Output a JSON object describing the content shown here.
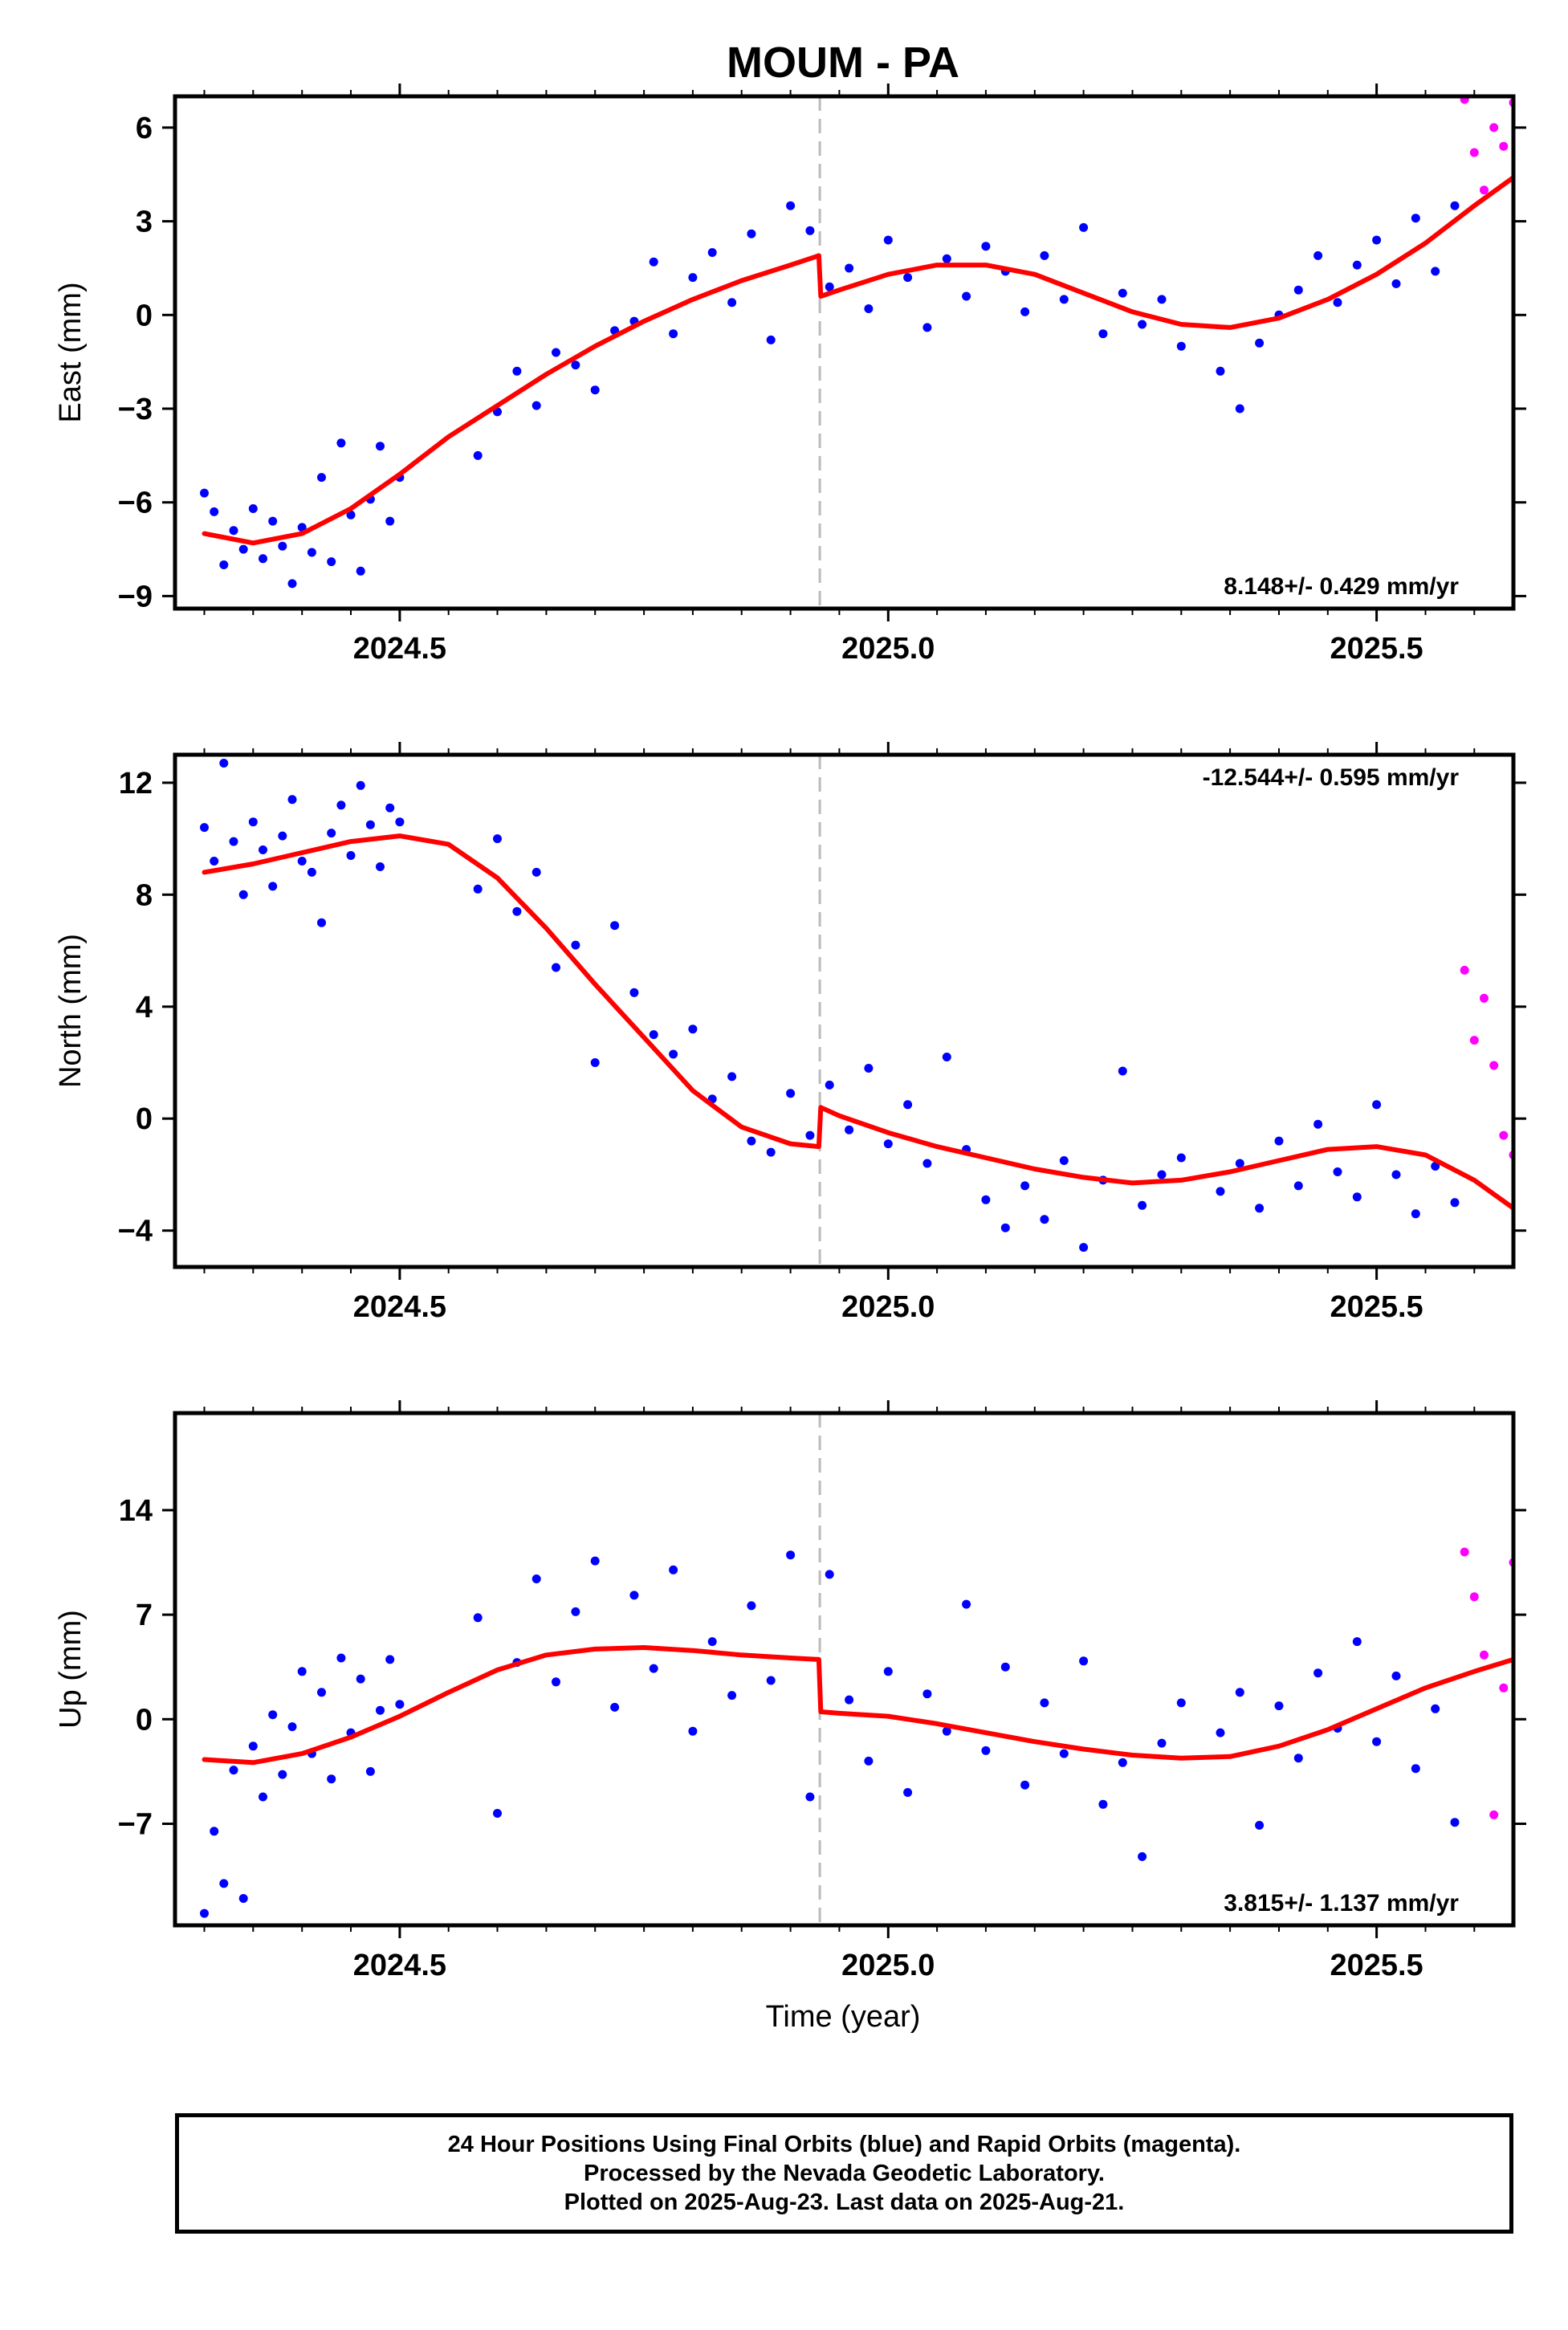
{
  "title": "MOUM - PA",
  "xlabel": "Time (year)",
  "colors": {
    "final": "#0000ff",
    "rapid": "#ff00ff",
    "model": "#ff0000",
    "event_line": "#bbbbbb"
  },
  "caption": {
    "line1": "24 Hour Positions Using Final Orbits (blue) and Rapid Orbits (magenta).",
    "line2": "Processed by the Nevada Geodetic Laboratory.",
    "line3": "Plotted on 2025-Aug-23. Last data on 2025-Aug-21."
  },
  "chart_data": [
    {
      "type": "scatter",
      "ylabel": "East (mm)",
      "xlim": [
        2024.27,
        2025.64
      ],
      "ylim": [
        -9.4,
        7.0
      ],
      "yticks": [
        -9,
        -6,
        -3,
        0,
        3,
        6
      ],
      "xticks": [
        2024.5,
        2025.0,
        2025.5
      ],
      "xticklabels": [
        "2024.5",
        "2025.0",
        "2025.5"
      ],
      "event_x": 2024.93,
      "rate_label": "8.148+/- 0.429 mm/yr",
      "rate_position": "bottom-right",
      "model": {
        "x": [
          2024.3,
          2024.35,
          2024.4,
          2024.45,
          2024.5,
          2024.55,
          2024.6,
          2024.65,
          2024.7,
          2024.75,
          2024.8,
          2024.85,
          2024.9,
          2024.929,
          2024.931,
          2024.95,
          2025.0,
          2025.05,
          2025.1,
          2025.15,
          2025.2,
          2025.25,
          2025.3,
          2025.35,
          2025.4,
          2025.45,
          2025.5,
          2025.55,
          2025.6,
          2025.64
        ],
        "y": [
          -7.0,
          -7.3,
          -7.0,
          -6.2,
          -5.1,
          -3.9,
          -2.9,
          -1.9,
          -1.0,
          -0.2,
          0.5,
          1.1,
          1.6,
          1.9,
          0.6,
          0.8,
          1.3,
          1.6,
          1.6,
          1.3,
          0.7,
          0.1,
          -0.3,
          -0.4,
          -0.1,
          0.5,
          1.3,
          2.3,
          3.5,
          4.4
        ]
      },
      "final": {
        "x": [
          2024.3,
          2024.31,
          2024.32,
          2024.33,
          2024.34,
          2024.35,
          2024.36,
          2024.37,
          2024.38,
          2024.39,
          2024.4,
          2024.41,
          2024.42,
          2024.43,
          2024.44,
          2024.45,
          2024.46,
          2024.47,
          2024.48,
          2024.49,
          2024.5,
          2024.58,
          2024.6,
          2024.62,
          2024.64,
          2024.66,
          2024.68,
          2024.7,
          2024.72,
          2024.74,
          2024.76,
          2024.78,
          2024.8,
          2024.82,
          2024.84,
          2024.86,
          2024.88,
          2024.9,
          2024.92,
          2024.94,
          2024.96,
          2024.98,
          2025.0,
          2025.02,
          2025.04,
          2025.06,
          2025.08,
          2025.1,
          2025.12,
          2025.14,
          2025.16,
          2025.18,
          2025.2,
          2025.22,
          2025.24,
          2025.26,
          2025.28,
          2025.3,
          2025.34,
          2025.36,
          2025.38,
          2025.4,
          2025.42,
          2025.44,
          2025.46,
          2025.48,
          2025.5,
          2025.52,
          2025.54,
          2025.56,
          2025.58
        ],
        "y": [
          -5.7,
          -6.3,
          -8.0,
          -6.9,
          -7.5,
          -6.2,
          -7.8,
          -6.6,
          -7.4,
          -8.6,
          -6.8,
          -7.6,
          -5.2,
          -7.9,
          -4.1,
          -6.4,
          -8.2,
          -5.9,
          -4.2,
          -6.6,
          -5.2,
          -4.5,
          -3.1,
          -1.8,
          -2.9,
          -1.2,
          -1.6,
          -2.4,
          -0.5,
          -0.2,
          1.7,
          -0.6,
          1.2,
          2.0,
          0.4,
          2.6,
          -0.8,
          3.5,
          2.7,
          0.9,
          1.5,
          0.2,
          2.4,
          1.2,
          -0.4,
          1.8,
          0.6,
          2.2,
          1.4,
          0.1,
          1.9,
          0.5,
          2.8,
          -0.6,
          0.7,
          -0.3,
          0.5,
          -1.0,
          -1.8,
          -3.0,
          -0.9,
          0.0,
          0.8,
          1.9,
          0.4,
          1.6,
          2.4,
          1.0,
          3.1,
          1.4,
          3.5
        ]
      },
      "rapid": {
        "x": [
          2025.59,
          2025.6,
          2025.61,
          2025.62,
          2025.63,
          2025.64
        ],
        "y": [
          6.9,
          5.2,
          4.0,
          6.0,
          5.4,
          6.8
        ]
      }
    },
    {
      "type": "scatter",
      "ylabel": "North (mm)",
      "xlim": [
        2024.27,
        2025.64
      ],
      "ylim": [
        -5.3,
        13.0
      ],
      "yticks": [
        -4,
        0,
        4,
        8,
        12
      ],
      "xticks": [
        2024.5,
        2025.0,
        2025.5
      ],
      "xticklabels": [
        "2024.5",
        "2025.0",
        "2025.5"
      ],
      "event_x": 2024.93,
      "rate_label": "-12.544+/- 0.595 mm/yr",
      "rate_position": "top-right",
      "model": {
        "x": [
          2024.3,
          2024.35,
          2024.4,
          2024.45,
          2024.5,
          2024.55,
          2024.6,
          2024.65,
          2024.7,
          2024.75,
          2024.8,
          2024.85,
          2024.9,
          2024.929,
          2024.931,
          2024.95,
          2025.0,
          2025.05,
          2025.1,
          2025.15,
          2025.2,
          2025.25,
          2025.3,
          2025.35,
          2025.4,
          2025.45,
          2025.5,
          2025.55,
          2025.6,
          2025.64
        ],
        "y": [
          8.8,
          9.1,
          9.5,
          9.9,
          10.1,
          9.8,
          8.6,
          6.8,
          4.8,
          2.9,
          1.0,
          -0.3,
          -0.9,
          -1.0,
          0.4,
          0.1,
          -0.5,
          -1.0,
          -1.4,
          -1.8,
          -2.1,
          -2.3,
          -2.2,
          -1.9,
          -1.5,
          -1.1,
          -1.0,
          -1.3,
          -2.2,
          -3.2
        ]
      },
      "final": {
        "x": [
          2024.3,
          2024.31,
          2024.32,
          2024.33,
          2024.34,
          2024.35,
          2024.36,
          2024.37,
          2024.38,
          2024.39,
          2024.4,
          2024.41,
          2024.42,
          2024.43,
          2024.44,
          2024.45,
          2024.46,
          2024.47,
          2024.48,
          2024.49,
          2024.5,
          2024.58,
          2024.6,
          2024.62,
          2024.64,
          2024.66,
          2024.68,
          2024.7,
          2024.72,
          2024.74,
          2024.76,
          2024.78,
          2024.8,
          2024.82,
          2024.84,
          2024.86,
          2024.88,
          2024.9,
          2024.92,
          2024.94,
          2024.96,
          2024.98,
          2025.0,
          2025.02,
          2025.04,
          2025.06,
          2025.08,
          2025.1,
          2025.12,
          2025.14,
          2025.16,
          2025.18,
          2025.2,
          2025.22,
          2025.24,
          2025.26,
          2025.28,
          2025.3,
          2025.34,
          2025.36,
          2025.38,
          2025.4,
          2025.42,
          2025.44,
          2025.46,
          2025.48,
          2025.5,
          2025.52,
          2025.54,
          2025.56,
          2025.58
        ],
        "y": [
          10.4,
          9.2,
          12.7,
          9.9,
          8.0,
          10.6,
          9.6,
          8.3,
          10.1,
          11.4,
          9.2,
          8.8,
          7.0,
          10.2,
          11.2,
          9.4,
          11.9,
          10.5,
          9.0,
          11.1,
          10.6,
          8.2,
          10.0,
          7.4,
          8.8,
          5.4,
          6.2,
          2.0,
          6.9,
          4.5,
          3.0,
          2.3,
          3.2,
          0.7,
          1.5,
          -0.8,
          -1.2,
          0.9,
          -0.6,
          1.2,
          -0.4,
          1.8,
          -0.9,
          0.5,
          -1.6,
          2.2,
          -1.1,
          -2.9,
          -3.9,
          -2.4,
          -3.6,
          -1.5,
          -4.6,
          -2.2,
          1.7,
          -3.1,
          -2.0,
          -1.4,
          -2.6,
          -1.6,
          -3.2,
          -0.8,
          -2.4,
          -0.2,
          -1.9,
          -2.8,
          0.5,
          -2.0,
          -3.4,
          -1.7,
          -3.0
        ]
      },
      "rapid": {
        "x": [
          2025.59,
          2025.6,
          2025.61,
          2025.62,
          2025.63,
          2025.64
        ],
        "y": [
          5.3,
          2.8,
          4.3,
          1.9,
          -0.6,
          -1.3
        ]
      }
    },
    {
      "type": "scatter",
      "ylabel": "Up (mm)",
      "xlim": [
        2024.27,
        2025.64
      ],
      "ylim": [
        -13.8,
        20.5
      ],
      "yticks": [
        -7,
        0,
        7,
        14
      ],
      "xticks": [
        2024.5,
        2025.0,
        2025.5
      ],
      "xticklabels": [
        "2024.5",
        "2025.0",
        "2025.5"
      ],
      "event_x": 2024.93,
      "rate_label": "3.815+/- 1.137 mm/yr",
      "rate_position": "bottom-right",
      "model": {
        "x": [
          2024.3,
          2024.35,
          2024.4,
          2024.45,
          2024.5,
          2024.55,
          2024.6,
          2024.65,
          2024.7,
          2024.75,
          2024.8,
          2024.85,
          2024.9,
          2024.929,
          2024.931,
          2024.95,
          2025.0,
          2025.05,
          2025.1,
          2025.15,
          2025.2,
          2025.25,
          2025.3,
          2025.35,
          2025.4,
          2025.45,
          2025.5,
          2025.55,
          2025.6,
          2025.64
        ],
        "y": [
          -2.7,
          -2.9,
          -2.3,
          -1.2,
          0.2,
          1.8,
          3.3,
          4.3,
          4.7,
          4.8,
          4.6,
          4.3,
          4.1,
          4.0,
          0.5,
          0.4,
          0.2,
          -0.3,
          -0.9,
          -1.5,
          -2.0,
          -2.4,
          -2.6,
          -2.5,
          -1.8,
          -0.7,
          0.7,
          2.1,
          3.2,
          4.0
        ]
      },
      "final": {
        "x": [
          2024.3,
          2024.31,
          2024.32,
          2024.33,
          2024.34,
          2024.35,
          2024.36,
          2024.37,
          2024.38,
          2024.39,
          2024.4,
          2024.41,
          2024.42,
          2024.43,
          2024.44,
          2024.45,
          2024.46,
          2024.47,
          2024.48,
          2024.49,
          2024.5,
          2024.58,
          2024.6,
          2024.62,
          2024.64,
          2024.66,
          2024.68,
          2024.7,
          2024.72,
          2024.74,
          2024.76,
          2024.78,
          2024.8,
          2024.82,
          2024.84,
          2024.86,
          2024.88,
          2024.9,
          2024.92,
          2024.94,
          2024.96,
          2024.98,
          2025.0,
          2025.02,
          2025.04,
          2025.06,
          2025.08,
          2025.1,
          2025.12,
          2025.14,
          2025.16,
          2025.18,
          2025.2,
          2025.22,
          2025.24,
          2025.26,
          2025.28,
          2025.3,
          2025.34,
          2025.36,
          2025.38,
          2025.4,
          2025.42,
          2025.44,
          2025.46,
          2025.48,
          2025.5,
          2025.52,
          2025.54,
          2025.56,
          2025.58
        ],
        "y": [
          -13.0,
          -7.5,
          -11.0,
          -3.4,
          -12.0,
          -1.8,
          -5.2,
          0.3,
          -3.7,
          -0.5,
          3.2,
          -2.3,
          1.8,
          -4.0,
          4.1,
          -0.9,
          2.7,
          -3.5,
          0.6,
          4.0,
          1.0,
          6.8,
          -6.3,
          3.8,
          9.4,
          2.5,
          7.2,
          10.6,
          0.8,
          8.3,
          3.4,
          10.0,
          -0.8,
          5.2,
          1.6,
          7.6,
          2.6,
          11.0,
          -5.2,
          9.7,
          1.3,
          -2.8,
          3.2,
          -4.9,
          1.7,
          -0.8,
          7.7,
          -2.1,
          3.5,
          -4.4,
          1.1,
          -2.3,
          3.9,
          -5.7,
          -2.9,
          -9.2,
          -1.6,
          1.1,
          -0.9,
          1.8,
          -7.1,
          0.9,
          -2.6,
          3.1,
          -0.6,
          5.2,
          -1.5,
          2.9,
          -3.3,
          0.7,
          -6.9
        ]
      },
      "rapid": {
        "x": [
          2025.59,
          2025.6,
          2025.61,
          2025.62,
          2025.63,
          2025.64
        ],
        "y": [
          11.2,
          8.2,
          4.3,
          -6.4,
          2.1,
          10.5
        ]
      }
    }
  ]
}
